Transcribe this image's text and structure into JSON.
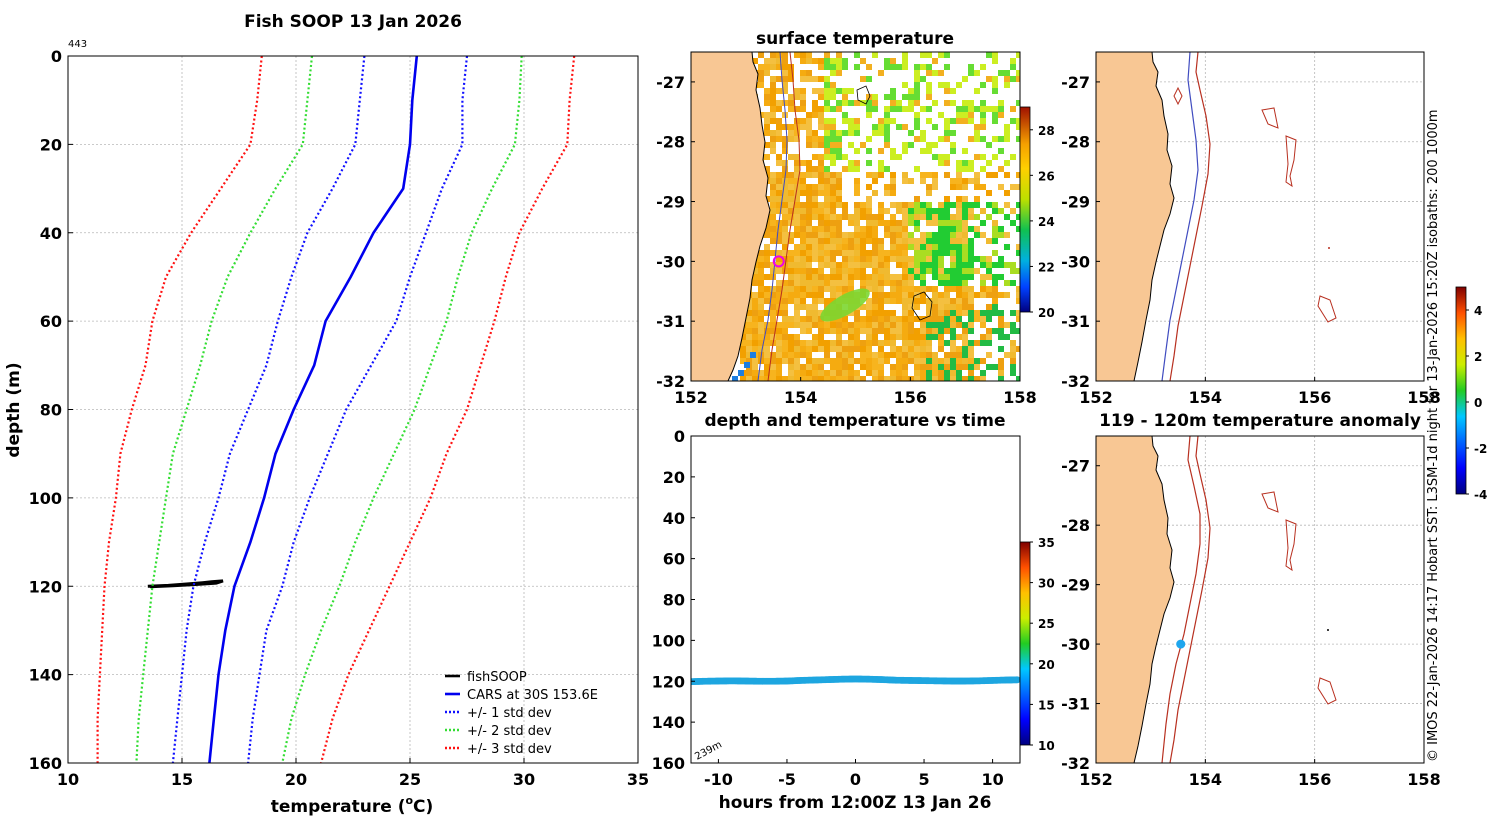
{
  "credit": "© IMOS 22-Jan-2026 14:17 Hobart SST: L3SM-1d night for 13-Jan-2026 15:20Z isobaths: 200  1000m",
  "colors": {
    "fishsoop": "#000000",
    "cars": "#0000ee",
    "sd1": "#1010ff",
    "sd2": "#33dd33",
    "sd3": "#ff1111",
    "land": "#f8c794",
    "isobath200": "#404cc0",
    "isobath1000": "#b83020",
    "anomaly_dot": "#1ea6ee",
    "time_dots": "#1ea6e0"
  },
  "chart_data": [
    {
      "id": "profile",
      "type": "line",
      "title": "Fish SOOP 13 Jan 2026",
      "corner_label": "443",
      "xlabel": "temperature (°C)",
      "xlabel_main": "temperature (",
      "xlabel_sup": "o",
      "xlabel_tail": "C)",
      "ylabel": "depth (m)",
      "xlim": [
        10,
        35
      ],
      "ylim": [
        0,
        160
      ],
      "y_reversed": true,
      "xticks": [
        10,
        15,
        20,
        25,
        30,
        35
      ],
      "yticks": [
        0,
        20,
        40,
        60,
        80,
        100,
        120,
        140,
        160
      ],
      "grid": true,
      "legend_position": "bottom-right",
      "depth": [
        0,
        10,
        20,
        30,
        40,
        50,
        60,
        70,
        80,
        90,
        100,
        110,
        120,
        130,
        140,
        150,
        160
      ],
      "series": [
        {
          "name": "fishSOOP",
          "style": "solid",
          "color": "#000000",
          "points": [
            [
              13.5,
              120
            ],
            [
              14.4,
              119.8
            ],
            [
              15.2,
              119.5
            ],
            [
              15.9,
              119.2
            ],
            [
              16.3,
              119.0
            ],
            [
              16.8,
              118.8
            ],
            [
              16.5,
              119.3
            ],
            [
              15.6,
              119.6
            ],
            [
              14.6,
              119.9
            ],
            [
              13.6,
              120.1
            ]
          ]
        },
        {
          "name": "CARS at 30S 153.6E",
          "style": "solid",
          "color": "#0000ee",
          "values": [
            25.3,
            25.1,
            25.0,
            24.7,
            23.4,
            22.4,
            21.3,
            20.8,
            19.9,
            19.1,
            18.6,
            18.0,
            17.3,
            16.9,
            16.6,
            16.4,
            16.2
          ]
        },
        {
          "name": "+/- 1 std dev",
          "style": "dotted",
          "color": "#1010ff",
          "lower": [
            23.0,
            22.8,
            22.6,
            21.6,
            20.5,
            19.8,
            19.2,
            18.7,
            17.9,
            17.1,
            16.6,
            16.0,
            15.5,
            15.2,
            15.0,
            14.8,
            14.6
          ],
          "upper": [
            27.5,
            27.3,
            27.3,
            26.4,
            25.7,
            25.0,
            24.4,
            23.3,
            22.2,
            21.4,
            20.6,
            19.9,
            19.4,
            18.7,
            18.4,
            18.1,
            17.9
          ]
        },
        {
          "name": "+/- 2 std dev",
          "style": "dotted",
          "color": "#33dd33",
          "lower": [
            20.7,
            20.5,
            20.3,
            19.1,
            18.0,
            17.0,
            16.3,
            15.8,
            15.2,
            14.6,
            14.3,
            14.0,
            13.7,
            13.5,
            13.3,
            13.1,
            13.0
          ],
          "upper": [
            29.9,
            29.8,
            29.6,
            28.6,
            27.7,
            27.1,
            26.6,
            25.9,
            25.2,
            24.3,
            23.4,
            22.6,
            21.9,
            21.1,
            20.4,
            19.8,
            19.4
          ]
        },
        {
          "name": "+/- 3 std dev",
          "style": "dotted",
          "color": "#ff1111",
          "lower": [
            18.5,
            18.3,
            18.0,
            16.7,
            15.4,
            14.3,
            13.7,
            13.4,
            12.8,
            12.3,
            12.1,
            11.8,
            11.6,
            11.5,
            11.4,
            11.3,
            11.3
          ],
          "upper": [
            32.2,
            32.0,
            31.9,
            30.8,
            29.8,
            29.2,
            28.7,
            28.1,
            27.5,
            26.6,
            25.9,
            25.0,
            24.1,
            23.2,
            22.3,
            21.6,
            21.1
          ]
        }
      ]
    },
    {
      "id": "sst_map",
      "type": "heatmap",
      "title": "surface temperature",
      "xlim": [
        152,
        158
      ],
      "ylim": [
        -32,
        -26.5
      ],
      "xticks": [
        152,
        154,
        156,
        158
      ],
      "yticks": [
        -27,
        -28,
        -29,
        -30,
        -31,
        -32
      ],
      "colorbar": {
        "min": 20,
        "max": 29,
        "ticks": [
          20,
          22,
          24,
          26,
          28
        ]
      },
      "marker": {
        "lon": 153.6,
        "lat": -30.0,
        "shape": "circle",
        "color": "#ee00ee"
      }
    },
    {
      "id": "bathy_map",
      "type": "heatmap",
      "title": "",
      "xlim": [
        152,
        158
      ],
      "ylim": [
        -32,
        -26.5
      ],
      "xticks": [
        152,
        154,
        156,
        158
      ],
      "yticks": [
        -27,
        -28,
        -29,
        -30,
        -31,
        -32
      ],
      "isobaths_m": [
        200,
        1000
      ]
    },
    {
      "id": "depth_time",
      "type": "scatter",
      "title": "depth and temperature vs time",
      "xlabel": "hours from 12:00Z 13 Jan 26",
      "xlim": [
        -12,
        12
      ],
      "ylim": [
        0,
        160
      ],
      "y_reversed": true,
      "xticks": [
        -10,
        -5,
        0,
        5,
        10
      ],
      "yticks": [
        0,
        20,
        40,
        60,
        80,
        100,
        120,
        140,
        160
      ],
      "annotation": "239m",
      "x": [
        -12,
        -11,
        -10,
        -9,
        -8,
        -7,
        -6,
        -5,
        -4,
        -3,
        -2,
        -1,
        0,
        1,
        2,
        3,
        4,
        5,
        6,
        7,
        8,
        9,
        10,
        11,
        11.8
      ],
      "depth": [
        120.2,
        120.0,
        119.9,
        119.8,
        119.9,
        120.0,
        120.0,
        119.9,
        119.6,
        119.4,
        119.2,
        119.0,
        118.9,
        119.0,
        119.2,
        119.5,
        119.6,
        119.7,
        119.8,
        119.9,
        119.9,
        119.8,
        119.6,
        119.4,
        119.3
      ],
      "temperature": 19,
      "colorbar": {
        "min": 10,
        "max": 35,
        "ticks": [
          10,
          15,
          20,
          25,
          30,
          35
        ]
      }
    },
    {
      "id": "anomaly_map",
      "type": "scatter",
      "title": "119 - 120m temperature anomaly",
      "xlim": [
        152,
        158
      ],
      "ylim": [
        -32,
        -26.5
      ],
      "xticks": [
        152,
        154,
        156,
        158
      ],
      "yticks": [
        -27,
        -28,
        -29,
        -30,
        -31,
        -32
      ],
      "point": {
        "lon": 153.55,
        "lat": -30.0,
        "anomaly": -1.5
      },
      "colorbar": {
        "min": -4,
        "max": 5,
        "ticks": [
          -4,
          -2,
          0,
          2,
          4
        ]
      }
    }
  ]
}
